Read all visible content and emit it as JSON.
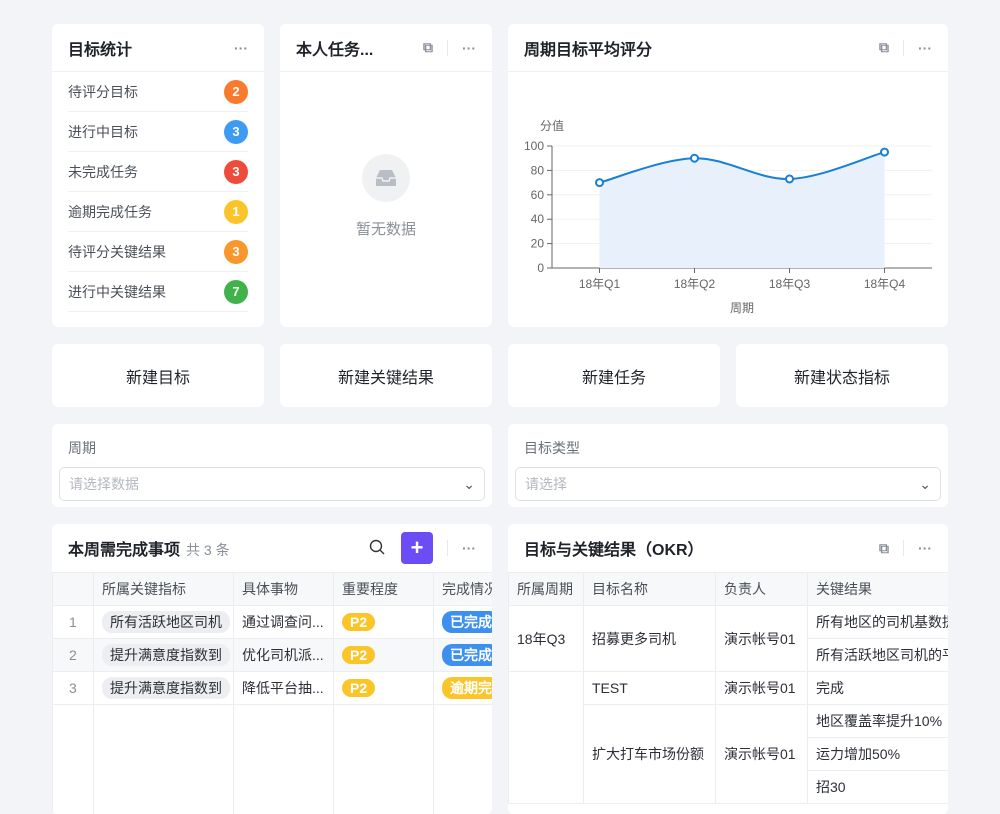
{
  "stats": {
    "title": "目标统计",
    "items": [
      {
        "label": "待评分目标",
        "count": "2",
        "color": "#f97a2c"
      },
      {
        "label": "进行中目标",
        "count": "3",
        "color": "#3d9bf3"
      },
      {
        "label": "未完成任务",
        "count": "3",
        "color": "#ef4b3b"
      },
      {
        "label": "逾期完成任务",
        "count": "1",
        "color": "#fbc52a"
      },
      {
        "label": "待评分关键结果",
        "count": "3",
        "color": "#f8972b"
      },
      {
        "label": "进行中关键结果",
        "count": "7",
        "color": "#3fb34a"
      }
    ]
  },
  "tasks": {
    "title": "本人任务...",
    "empty": "暂无数据"
  },
  "chart_card": {
    "title": "周期目标平均评分"
  },
  "chart_data": {
    "type": "area",
    "categories": [
      "18年Q1",
      "18年Q2",
      "18年Q3",
      "18年Q4"
    ],
    "values": [
      70,
      90,
      73,
      95
    ],
    "ylabel": "分值",
    "xlabel": "周期",
    "ylim": [
      0,
      100
    ],
    "yticks": [
      0,
      20,
      40,
      60,
      80,
      100
    ],
    "grid": true,
    "color": "#1a7fd6",
    "smooth": true
  },
  "actions": [
    "新建目标",
    "新建关键结果",
    "新建任务",
    "新建状态指标"
  ],
  "filters": [
    {
      "label": "周期",
      "placeholder": "请选择数据"
    },
    {
      "label": "目标类型",
      "placeholder": "请选择"
    }
  ],
  "weekly": {
    "title": "本周需完成事项",
    "count": "共 3 条",
    "columns": [
      "",
      "所属关键指标",
      "具体事物",
      "重要程度",
      "完成情况"
    ],
    "rows": [
      {
        "i": "1",
        "kr": "所有活跃地区司机",
        "item": "通过调查问...",
        "p": "P2",
        "status": "已完成",
        "sc": "#3d8ff0"
      },
      {
        "i": "2",
        "kr": "提升满意度指数到",
        "item": "优化司机派...",
        "p": "P2",
        "status": "已完成",
        "sc": "#3d8ff0"
      },
      {
        "i": "3",
        "kr": "提升满意度指数到",
        "item": "降低平台抽...",
        "p": "P2",
        "status": "逾期完成",
        "sc": "#fbc52a"
      }
    ]
  },
  "okr": {
    "title": "目标与关键结果（OKR）",
    "columns": [
      "所属周期",
      "目标名称",
      "负责人",
      "关键结果"
    ],
    "period": "18年Q3",
    "goals": [
      {
        "name": "招募更多司机",
        "owner": "演示帐号01",
        "krs": [
          "所有地区的司机基数提升",
          "所有活跃地区司机的平"
        ]
      },
      {
        "name": "TEST",
        "owner": "演示帐号01",
        "krs": [
          "完成"
        ]
      },
      {
        "name": "扩大打车市场份额",
        "owner": "演示帐号01",
        "krs": [
          "地区覆盖率提升10%",
          "运力增加50%",
          "招30"
        ]
      }
    ]
  }
}
